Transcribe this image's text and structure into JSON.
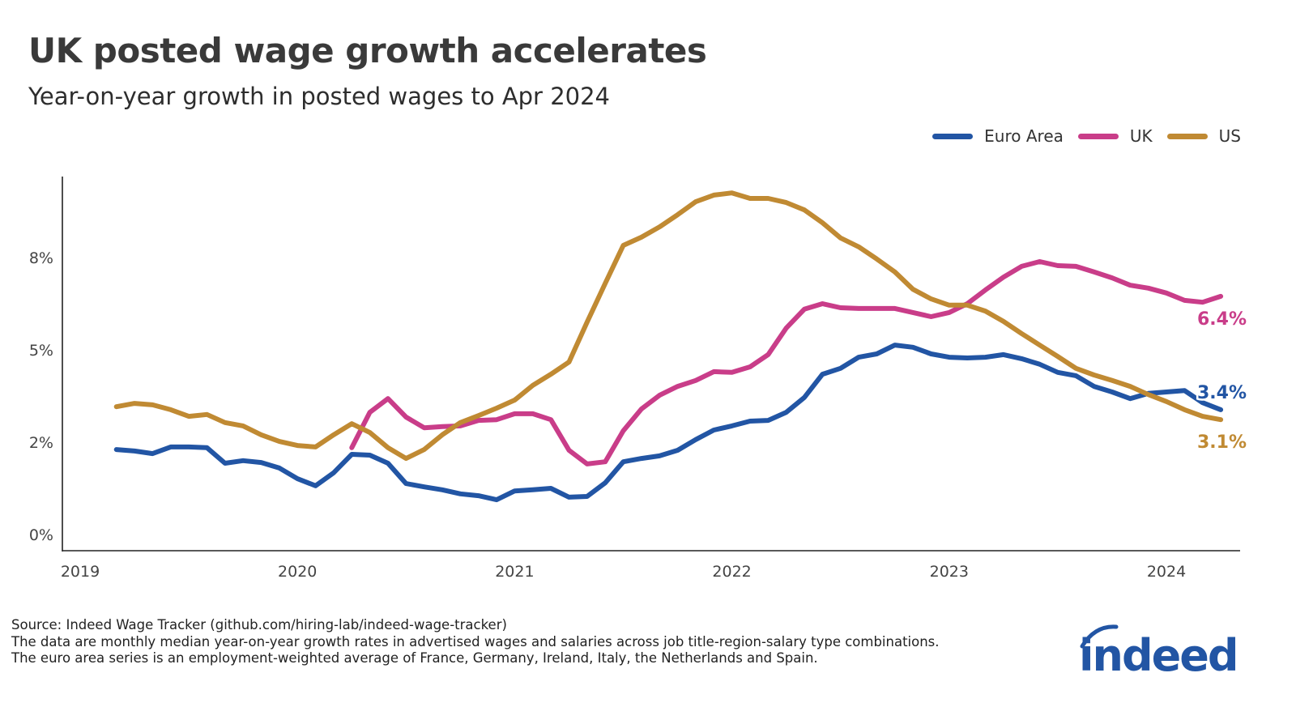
{
  "title": "UK posted wage growth accelerates",
  "subtitle": "Year-on-year growth in posted wages to Apr 2024",
  "notes": [
    "Source: Indeed Wage Tracker (github.com/hiring-lab/indeed-wage-tracker)",
    "The data are monthly median year-on-year growth rates in advertised wages and salaries across job title-region-salary type combinations.",
    "The euro area series is an employment-weighted average of France, Germany, Ireland, Italy, the Netherlands and Spain."
  ],
  "logo_text": "indeed",
  "chart_data": {
    "type": "line",
    "title": "UK posted wage growth accelerates",
    "subtitle": "Year-on-year growth in posted wages to Apr 2024",
    "xlabel": "",
    "ylabel": "",
    "x_start": "2019-03",
    "x_end": "2024-04",
    "frequency": "monthly",
    "x_ticks": [
      "2019",
      "2020",
      "2021",
      "2022",
      "2023",
      "2024"
    ],
    "y_ticks": [
      {
        "value": 0,
        "label": "0%"
      },
      {
        "value": 2.5,
        "label": "2%"
      },
      {
        "value": 5,
        "label": "5%"
      },
      {
        "value": 7.5,
        "label": "8%"
      }
    ],
    "ylim": [
      -0.45,
      9.7
    ],
    "grid": false,
    "legend_position": "top-right",
    "series": [
      {
        "name": "Euro Area",
        "color": "#2255a4",
        "start": "2019-03",
        "end_label": "3.4%",
        "values": [
          2.3,
          2.26,
          2.19,
          2.37,
          2.37,
          2.35,
          1.93,
          2.0,
          1.95,
          1.8,
          1.51,
          1.32,
          1.67,
          2.17,
          2.15,
          1.93,
          1.38,
          1.29,
          1.21,
          1.1,
          1.05,
          0.94,
          1.18,
          1.21,
          1.25,
          1.01,
          1.03,
          1.4,
          1.97,
          2.06,
          2.13,
          2.28,
          2.57,
          2.83,
          2.94,
          3.07,
          3.09,
          3.31,
          3.71,
          4.34,
          4.5,
          4.8,
          4.89,
          5.13,
          5.07,
          4.89,
          4.8,
          4.78,
          4.8,
          4.87,
          4.76,
          4.61,
          4.39,
          4.3,
          4.01,
          3.86,
          3.68,
          3.82,
          3.86,
          3.9,
          3.57,
          3.38
        ]
      },
      {
        "name": "UK",
        "color": "#c93d89",
        "start": "2020-04",
        "end_label": "6.4%",
        "values": [
          2.35,
          3.31,
          3.68,
          3.18,
          2.89,
          2.92,
          2.94,
          3.09,
          3.11,
          3.27,
          3.27,
          3.11,
          2.28,
          1.91,
          1.97,
          2.81,
          3.4,
          3.77,
          4.01,
          4.17,
          4.41,
          4.39,
          4.54,
          4.87,
          5.59,
          6.1,
          6.25,
          6.14,
          6.12,
          6.12,
          6.12,
          6.01,
          5.9,
          6.01,
          6.25,
          6.62,
          6.97,
          7.26,
          7.39,
          7.28,
          7.26,
          7.11,
          6.95,
          6.75,
          6.67,
          6.54,
          6.34,
          6.29,
          6.45
        ]
      },
      {
        "name": "US",
        "color": "#c08a33",
        "start": "2019-03",
        "end_label": "3.1%",
        "values": [
          3.46,
          3.55,
          3.51,
          3.38,
          3.2,
          3.25,
          3.03,
          2.94,
          2.7,
          2.52,
          2.41,
          2.37,
          2.7,
          3.0,
          2.76,
          2.35,
          2.06,
          2.3,
          2.7,
          3.03,
          3.22,
          3.42,
          3.64,
          4.04,
          4.34,
          4.67,
          5.75,
          6.8,
          7.83,
          8.05,
          8.33,
          8.66,
          9.01,
          9.19,
          9.25,
          9.1,
          9.1,
          8.99,
          8.79,
          8.44,
          8.03,
          7.79,
          7.46,
          7.11,
          6.64,
          6.38,
          6.21,
          6.21,
          6.05,
          5.77,
          5.44,
          5.13,
          4.82,
          4.5,
          4.32,
          4.17,
          4.01,
          3.79,
          3.6,
          3.38,
          3.2,
          3.11
        ]
      }
    ]
  }
}
